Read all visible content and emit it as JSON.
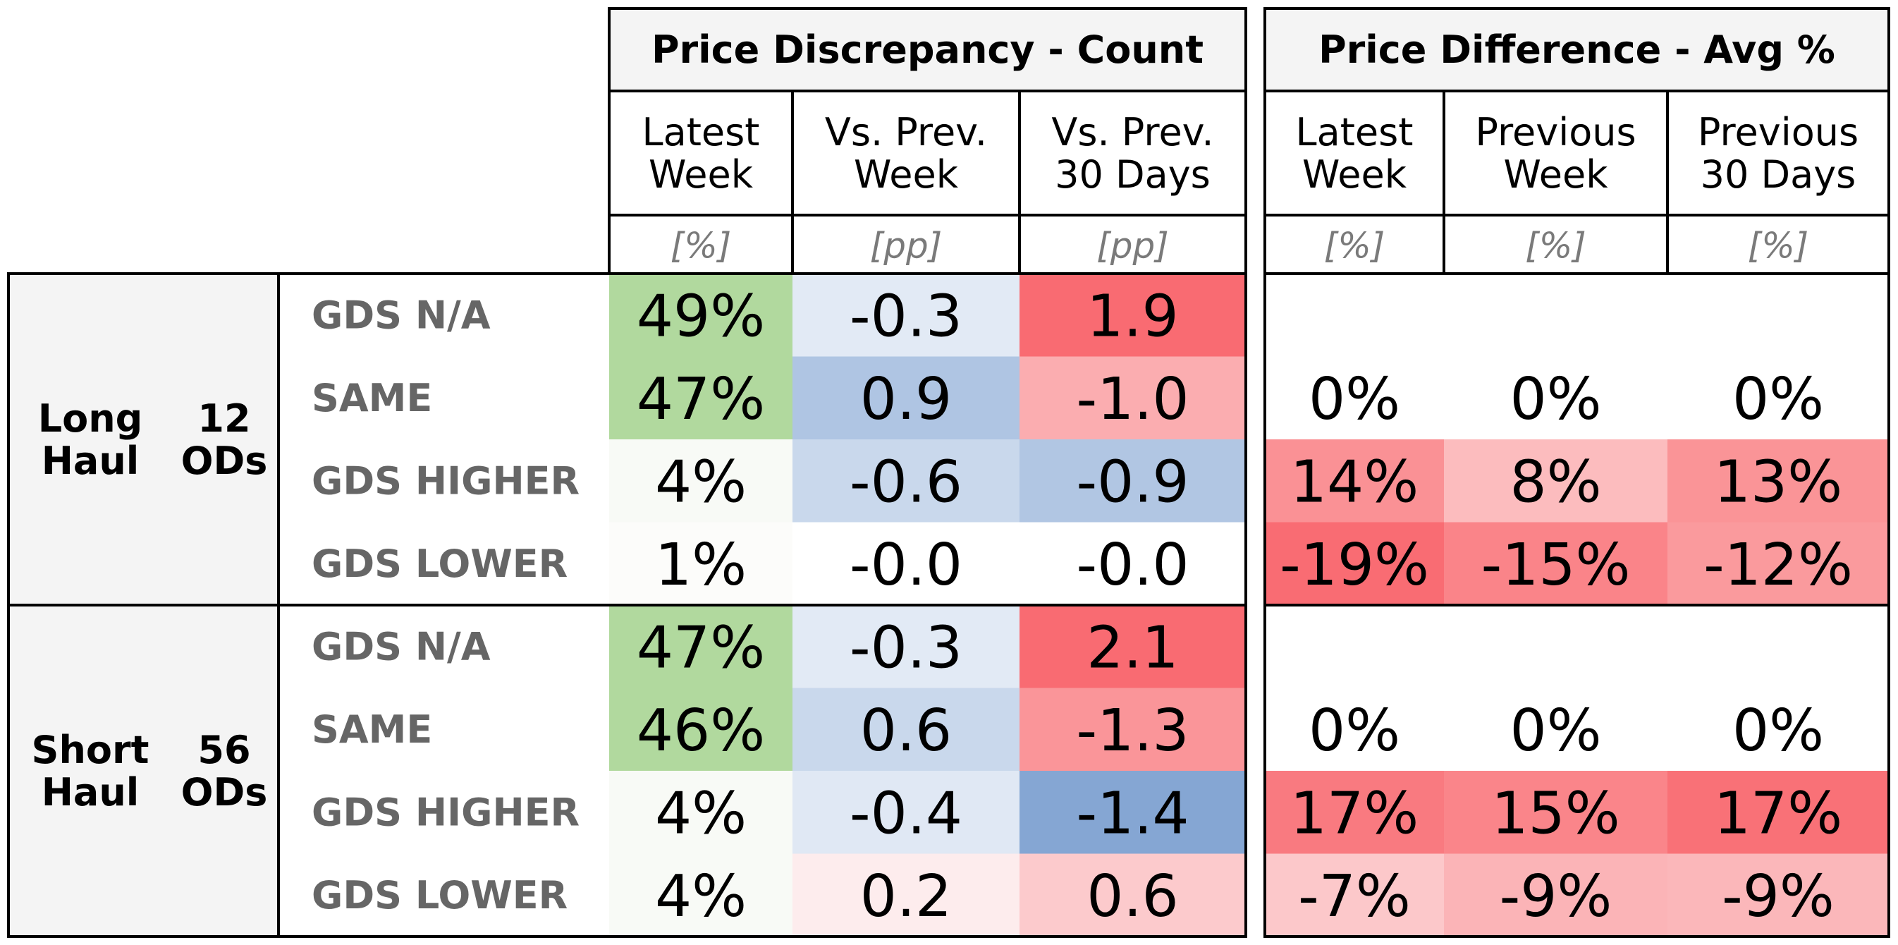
{
  "chart_data": {
    "type": "table",
    "sections": [
      {
        "title": "Price Discrepancy - Count",
        "columns": [
          {
            "label": "Latest\nWeek",
            "unit": "[%]"
          },
          {
            "label": "Vs. Prev.\nWeek",
            "unit": "[pp]"
          },
          {
            "label": "Vs. Prev.\n30 Days",
            "unit": "[pp]"
          }
        ]
      },
      {
        "title": "Price Difference - Avg %",
        "columns": [
          {
            "label": "Latest\nWeek",
            "unit": "[%]"
          },
          {
            "label": "Previous\nWeek",
            "unit": "[%]"
          },
          {
            "label": "Previous\n30 Days",
            "unit": "[%]"
          }
        ]
      }
    ],
    "groups": [
      {
        "name": "Long\nHaul",
        "count": "12\nODs",
        "rows": [
          {
            "label": "GDS N/A",
            "values": [
              "49%",
              "-0.3",
              "1.9",
              "",
              "",
              ""
            ],
            "colors": [
              "#b1d99e",
              "#e2eaf5",
              "#f96b72",
              "#ffffff",
              "#ffffff",
              "#ffffff"
            ]
          },
          {
            "label": "SAME",
            "values": [
              "47%",
              "0.9",
              "-1.0",
              "0%",
              "0%",
              "0%"
            ],
            "colors": [
              "#b1d99e",
              "#afc5e3",
              "#fbadb0",
              "#ffffff",
              "#ffffff",
              "#ffffff"
            ]
          },
          {
            "label": "GDS HIGHER",
            "values": [
              "4%",
              "-0.6",
              "-0.9",
              "14%",
              "8%",
              "13%"
            ],
            "colors": [
              "#f8faf6",
              "#c9d8ec",
              "#b1c6e3",
              "#fa9195",
              "#fcbcbe",
              "#fa9497"
            ]
          },
          {
            "label": "GDS LOWER",
            "values": [
              "1%",
              "-0.0",
              "-0.0",
              "-19%",
              "-15%",
              "-12%"
            ],
            "colors": [
              "#fcfcfa",
              "#ffffff",
              "#ffffff",
              "#f96c73",
              "#fa8489",
              "#fa9a9d"
            ]
          }
        ]
      },
      {
        "name": "Short\nHaul",
        "count": "56\nODs",
        "rows": [
          {
            "label": "GDS N/A",
            "values": [
              "47%",
              "-0.3",
              "2.1",
              "",
              "",
              ""
            ],
            "colors": [
              "#b1d99e",
              "#e2eaf5",
              "#f96b72",
              "#ffffff",
              "#ffffff",
              "#ffffff"
            ]
          },
          {
            "label": "SAME",
            "values": [
              "46%",
              "0.6",
              "-1.3",
              "0%",
              "0%",
              "0%"
            ],
            "colors": [
              "#b1d99e",
              "#c9d8ec",
              "#fa9599",
              "#ffffff",
              "#ffffff",
              "#ffffff"
            ]
          },
          {
            "label": "GDS HIGHER",
            "values": [
              "4%",
              "-0.4",
              "-1.4",
              "17%",
              "15%",
              "17%"
            ],
            "colors": [
              "#f8faf6",
              "#e0e8f4",
              "#85a6d3",
              "#f97a80",
              "#fa858a",
              "#f97177"
            ]
          },
          {
            "label": "GDS LOWER",
            "values": [
              "4%",
              "0.2",
              "0.6",
              "-7%",
              "-9%",
              "-9%"
            ],
            "colors": [
              "#f8faf6",
              "#fdeced",
              "#fccacc",
              "#fcc8ca",
              "#fbb4b7",
              "#fbb7ba"
            ]
          }
        ]
      }
    ],
    "colors": {
      "header_bg": "#f4f4f4",
      "group_bg": "#f4f4f4",
      "grid": "#000000",
      "unit_text": "#7a7a7a",
      "row_label_text": "#666666"
    }
  }
}
